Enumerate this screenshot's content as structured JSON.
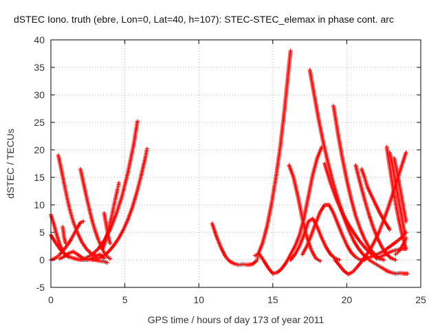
{
  "chart_data": {
    "type": "scatter",
    "title": "dSTEC Iono. truth (ebre, Lon=0, Lat=40, h=107): STEC-STEC_elemax in phase cont. arc",
    "xlabel": "GPS time / hours of day 173 of year 2011",
    "ylabel": "dSTEC  / TECUs",
    "xlim": [
      0,
      25
    ],
    "ylim": [
      -5,
      40
    ],
    "xticks": [
      0,
      5,
      10,
      15,
      20,
      25
    ],
    "yticks": [
      -5,
      0,
      5,
      10,
      15,
      20,
      25,
      30,
      35,
      40
    ],
    "grid": true,
    "marker": "+",
    "series_color": "#ff0000",
    "series": [
      {
        "x": [
          0.0,
          0.2,
          0.4,
          0.6,
          0.8,
          1.0,
          1.2
        ],
        "y": [
          8.2,
          6.5,
          4.5,
          2.8,
          1.6,
          0.8,
          0.5
        ]
      },
      {
        "x": [
          0.0,
          0.3,
          0.6,
          0.9,
          1.2,
          1.5,
          1.8,
          2.1,
          2.4,
          2.7,
          3.0,
          3.3,
          3.6,
          3.8
        ],
        "y": [
          4.5,
          3.2,
          2.0,
          1.2,
          0.6,
          0.3,
          0.1,
          0.0,
          0.0,
          0.1,
          0.0,
          -0.2,
          -0.3,
          -0.5
        ]
      },
      {
        "x": [
          0.0,
          0.2,
          0.4,
          0.6,
          0.8,
          1.0,
          1.2,
          1.4,
          1.6,
          1.8,
          2.0,
          2.2
        ],
        "y": [
          0.0,
          0.2,
          0.5,
          1.0,
          1.6,
          2.3,
          3.0,
          3.9,
          4.9,
          5.9,
          6.8,
          7.0
        ]
      },
      {
        "x": [
          0.6,
          0.9,
          1.2,
          1.5,
          1.8,
          2.1,
          2.4,
          2.7,
          3.0,
          3.3,
          3.6
        ],
        "y": [
          0.2,
          0.6,
          1.2,
          1.5,
          1.0,
          0.4,
          0.1,
          0.2,
          0.6,
          1.0,
          0.3
        ]
      },
      {
        "x": [
          0.5,
          0.7,
          0.9,
          1.1,
          1.3,
          1.5,
          1.8,
          2.1,
          2.4,
          2.7,
          3.0
        ],
        "y": [
          19.0,
          16.5,
          13.8,
          11.2,
          8.9,
          7.0,
          4.9,
          3.2,
          2.0,
          1.2,
          0.8
        ]
      },
      {
        "x": [
          0.8,
          0.85,
          0.9,
          1.0
        ],
        "y": [
          6.0,
          5.0,
          4.0,
          3.0
        ]
      },
      {
        "x": [
          2.0,
          2.2,
          2.4,
          2.6,
          2.8,
          3.0,
          3.2,
          3.4,
          3.6,
          3.8,
          4.0
        ],
        "y": [
          16.5,
          14.0,
          11.5,
          9.2,
          7.0,
          5.2,
          3.7,
          2.4,
          1.3,
          0.6,
          0.2
        ]
      },
      {
        "x": [
          2.0,
          2.4,
          2.8,
          3.2,
          3.6,
          4.0,
          4.4,
          4.8,
          5.2,
          5.6,
          5.85
        ],
        "y": [
          0.0,
          0.4,
          1.0,
          2.0,
          3.5,
          5.5,
          8.2,
          11.5,
          15.8,
          21.0,
          25.2
        ]
      },
      {
        "x": [
          2.8,
          3.1,
          3.4,
          3.7,
          4.0,
          4.3,
          4.6,
          4.9,
          5.2,
          5.5,
          5.8,
          6.1,
          6.4,
          6.5
        ],
        "y": [
          0.0,
          0.2,
          0.5,
          1.0,
          1.8,
          2.8,
          4.0,
          5.5,
          7.3,
          9.5,
          12.2,
          15.3,
          18.8,
          20.2
        ]
      },
      {
        "x": [
          3.5,
          3.7,
          3.9,
          4.1,
          4.3,
          4.5,
          4.6
        ],
        "y": [
          2.0,
          3.5,
          5.5,
          7.8,
          10.4,
          12.8,
          14.0
        ]
      },
      {
        "x": [
          3.6,
          3.7,
          3.8,
          3.9,
          4.0
        ],
        "y": [
          8.5,
          7.0,
          5.5,
          4.0,
          3.0
        ]
      },
      {
        "x": [
          10.9,
          11.2,
          11.5,
          11.8,
          12.1,
          12.4,
          12.7,
          13.0,
          13.3,
          13.6,
          13.9,
          14.0
        ],
        "y": [
          6.6,
          4.2,
          2.2,
          0.6,
          -0.3,
          -0.7,
          -0.9,
          -0.8,
          -0.9,
          -0.8,
          -0.2,
          0.5
        ]
      },
      {
        "x": [
          13.8,
          14.1,
          14.4,
          14.7,
          15.0,
          15.3,
          15.6,
          15.9,
          16.2,
          16.5,
          16.8,
          17.1,
          17.4,
          17.7,
          18.0,
          18.3
        ],
        "y": [
          0.8,
          1.0,
          -0.2,
          -1.5,
          -2.5,
          -2.3,
          -1.6,
          -0.5,
          1.0,
          2.5,
          4.5,
          7.5,
          11.5,
          15.5,
          18.5,
          20.5
        ]
      },
      {
        "x": [
          14.0,
          14.3,
          14.6,
          14.9,
          15.2,
          15.5,
          15.8,
          16.1,
          16.2
        ],
        "y": [
          1.0,
          3.0,
          6.0,
          10.0,
          14.8,
          20.5,
          27.5,
          35.5,
          38.0
        ]
      },
      {
        "x": [
          16.1,
          16.4,
          16.7,
          17.0,
          17.3,
          17.6,
          17.9,
          18.2
        ],
        "y": [
          17.2,
          15.0,
          11.5,
          7.5,
          4.2,
          1.8,
          0.3,
          -0.2
        ]
      },
      {
        "x": [
          16.2,
          16.5,
          16.8,
          17.1,
          17.4,
          17.7,
          18.0,
          18.3,
          18.6,
          18.9,
          19.2,
          19.5
        ],
        "y": [
          0.0,
          1.0,
          2.5,
          4.5,
          7.0,
          7.5,
          6.0,
          4.0,
          2.3,
          1.0,
          0.3,
          0.0
        ]
      },
      {
        "x": [
          17.0,
          17.3,
          17.6,
          17.9,
          18.2,
          18.5,
          18.8,
          19.1,
          19.4,
          19.7,
          20.0,
          20.3,
          20.6,
          20.9,
          21.2
        ],
        "y": [
          1.0,
          2.5,
          4.5,
          6.7,
          8.7,
          10.0,
          10.0,
          8.5,
          6.5,
          4.5,
          2.7,
          1.3,
          0.5,
          0.0,
          0.0
        ]
      },
      {
        "x": [
          17.5,
          17.8,
          18.1,
          18.4,
          18.7,
          19.0,
          19.3,
          19.6,
          19.9,
          20.2,
          20.5,
          20.8,
          21.1,
          21.4
        ],
        "y": [
          34.5,
          30.0,
          25.5,
          21.5,
          18.0,
          14.8,
          12.0,
          9.4,
          7.0,
          5.0,
          3.3,
          2.0,
          1.0,
          0.4
        ]
      },
      {
        "x": [
          19.1,
          19.4,
          19.7,
          20.0,
          20.3,
          20.6,
          20.9,
          21.2,
          21.5,
          21.8,
          22.1,
          22.3
        ],
        "y": [
          28.0,
          23.0,
          18.5,
          14.5,
          11.0,
          8.0,
          5.7,
          3.8,
          2.3,
          1.2,
          0.5,
          0.2
        ]
      },
      {
        "x": [
          18.5,
          18.9,
          19.3,
          19.7,
          20.1,
          20.5,
          20.9,
          21.3,
          21.7,
          22.1,
          22.5
        ],
        "y": [
          17.5,
          14.0,
          11.0,
          8.5,
          6.5,
          4.8,
          3.3,
          2.0,
          1.0,
          0.3,
          0.0
        ]
      },
      {
        "x": [
          19.2,
          19.5,
          19.8,
          20.1,
          20.4,
          20.7,
          21.0,
          21.3,
          21.6,
          21.9,
          22.2,
          22.5,
          22.8,
          23.1,
          23.4,
          23.7,
          24.0
        ],
        "y": [
          0.0,
          -1.0,
          -2.0,
          -2.6,
          -2.2,
          -1.3,
          -0.3,
          0.8,
          2.0,
          3.5,
          5.2,
          7.3,
          9.5,
          12.0,
          14.5,
          17.0,
          19.5
        ]
      },
      {
        "x": [
          20.6,
          20.9,
          21.2,
          21.5,
          21.8,
          22.1,
          22.4,
          22.7,
          23.0,
          23.3
        ],
        "y": [
          17.2,
          14.0,
          11.0,
          8.2,
          5.8,
          3.8,
          2.2,
          1.0,
          0.3,
          0.0
        ]
      },
      {
        "x": [
          21.0,
          21.2,
          21.4,
          21.7,
          22.0,
          22.3,
          22.6,
          22.9
        ],
        "y": [
          16.5,
          15.0,
          13.2,
          11.5,
          9.8,
          8.2,
          6.8,
          5.5
        ]
      },
      {
        "x": [
          22.7,
          22.9,
          23.1,
          23.3,
          23.5,
          23.7,
          23.9,
          24.0
        ],
        "y": [
          20.5,
          17.0,
          13.5,
          10.3,
          7.5,
          5.0,
          3.0,
          2.0
        ]
      },
      {
        "x": [
          22.9,
          23.1,
          23.3,
          23.5,
          23.7,
          23.9
        ],
        "y": [
          19.5,
          17.0,
          14.0,
          11.0,
          8.0,
          5.0
        ]
      },
      {
        "x": [
          23.2,
          23.4,
          23.6,
          23.8,
          24.0
        ],
        "y": [
          18.5,
          16.0,
          13.0,
          10.0,
          7.0
        ]
      },
      {
        "x": [
          21.5,
          21.8,
          22.1,
          22.4,
          22.7,
          23.0,
          23.3,
          23.6,
          23.9,
          24.1
        ],
        "y": [
          0.0,
          -0.5,
          -1.0,
          -1.5,
          -2.0,
          -2.3,
          -2.5,
          -2.4,
          -2.5,
          -2.5
        ]
      },
      {
        "x": [
          21.0,
          21.4,
          21.8,
          22.2,
          22.6,
          23.0,
          23.4,
          23.8,
          24.0
        ],
        "y": [
          0.0,
          0.3,
          0.7,
          1.2,
          1.8,
          2.6,
          3.4,
          4.3,
          5.0
        ]
      },
      {
        "x": [
          23.3,
          23.5,
          23.7,
          23.9,
          24.0
        ],
        "y": [
          1.0,
          1.5,
          2.3,
          3.2,
          4.0
        ]
      },
      {
        "x": [
          22.0,
          22.3,
          22.6,
          22.9,
          23.2,
          23.5,
          23.8,
          24.0
        ],
        "y": [
          0.2,
          0.6,
          1.0,
          1.4,
          1.7,
          1.9,
          2.0,
          2.0
        ]
      }
    ]
  }
}
